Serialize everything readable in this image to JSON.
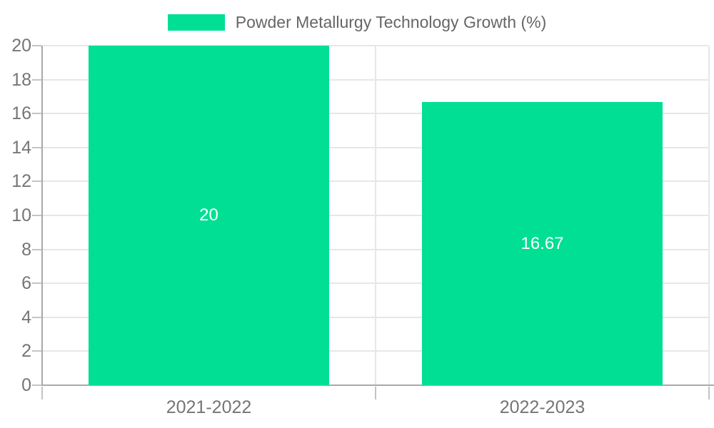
{
  "legend": {
    "label": "Powder Metallurgy Technology Growth (%)"
  },
  "colors": {
    "background": "#ffffff",
    "accent": "#00df93",
    "axis_line": "#a9a9a9",
    "grid_line": "#e7e7e7",
    "tick_mark": "#c4c4c4",
    "tick_label": "#757575",
    "legend_text": "#666666",
    "bar_label": "#ffffff"
  },
  "chart_data": {
    "type": "bar",
    "title": "Powder Metallurgy Technology Growth (%)",
    "categories": [
      "2021-2022",
      "2022-2023"
    ],
    "values": [
      20,
      16.67
    ],
    "value_labels": [
      "20",
      "16.67"
    ],
    "xlabel": "",
    "ylabel": "",
    "ylim": [
      0,
      20
    ],
    "ytick_step": 2,
    "grid": true,
    "legend_position": "top-center"
  }
}
